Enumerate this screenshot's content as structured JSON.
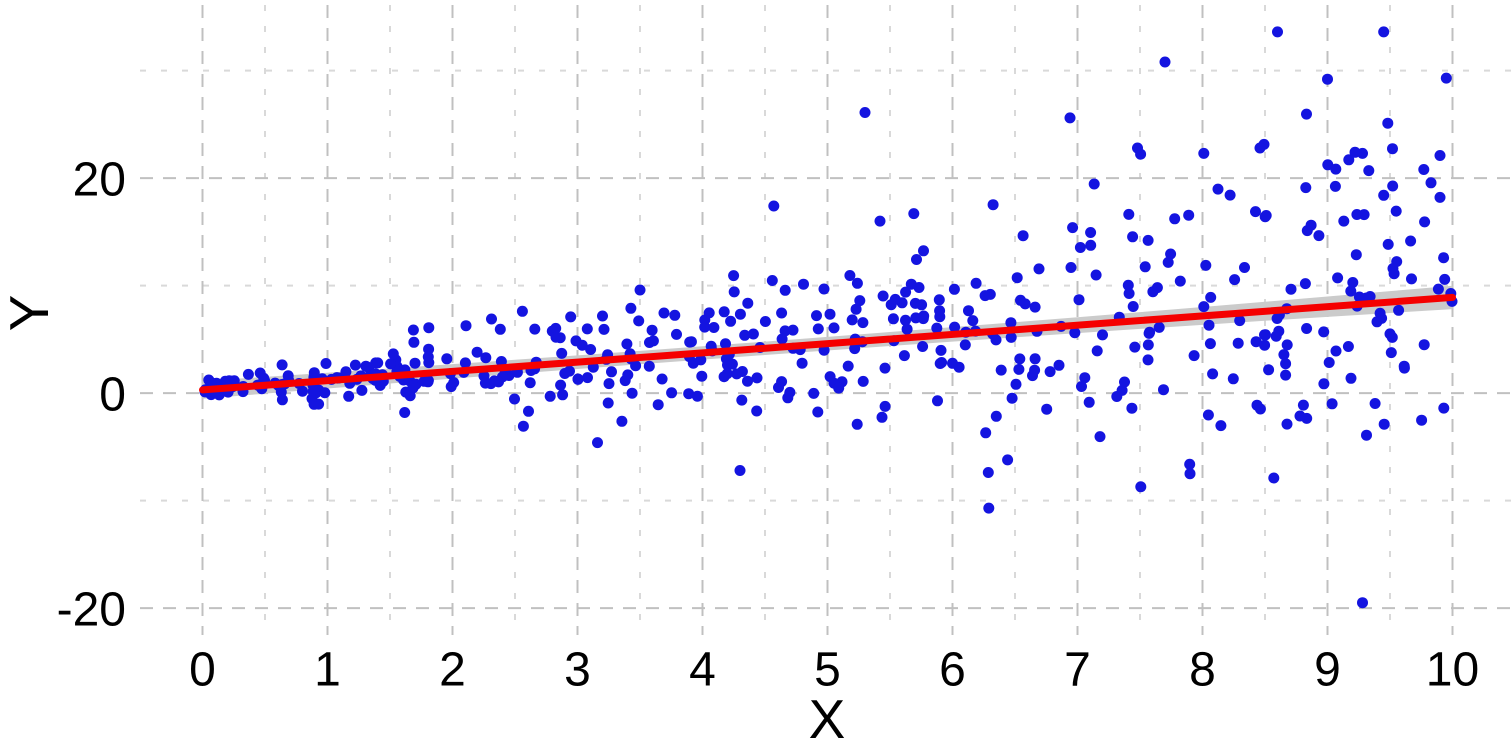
{
  "chart_data": {
    "type": "scatter",
    "title": "",
    "xlabel": "X",
    "ylabel": "Y",
    "xlim": [
      -0.5,
      10.5
    ],
    "ylim": [
      -22.5,
      36.1
    ],
    "grid": {
      "style": "dashed",
      "major_color": "#c0c0c0",
      "minor_color": "#d9d9d9"
    },
    "x_major_ticks": [
      0,
      1,
      2,
      3,
      4,
      5,
      6,
      7,
      8,
      9,
      10
    ],
    "x_tick_labels": [
      "0",
      "1",
      "2",
      "3",
      "4",
      "5",
      "6",
      "7",
      "8",
      "9",
      "10"
    ],
    "x_minor_gridlines": [
      0.5,
      1.5,
      2.5,
      3.5,
      4.5,
      5.5,
      6.5,
      7.5,
      8.5,
      9.5,
      10.5
    ],
    "y_major_ticks": [
      -20,
      0,
      20
    ],
    "y_tick_labels": [
      "-20",
      "0",
      "20"
    ],
    "y_minor_gridlines": [
      -10,
      10,
      30
    ],
    "regression_line": {
      "color": "#f50000",
      "width": 7,
      "intercept": 0.3,
      "slope": 0.86,
      "x_start": 0,
      "x_end": 10
    },
    "confidence_band": {
      "color": "#cbcbcb",
      "halfwidth_base": 0.62,
      "halfwidth_quad": 0.013,
      "halfwidth_center_x": 4
    },
    "scatter": {
      "color": "#1414e0",
      "point_radius": 5.5,
      "n_points": 500,
      "seed": 11,
      "x_min": 0,
      "x_max": 10,
      "noise_sd_base": 0.32,
      "noise_sd_per_x": 0.75,
      "noise_z_clamp": 2.6
    },
    "notable_points": [
      [
        5.3,
        26.1
      ],
      [
        6.94,
        25.6
      ],
      [
        7.7,
        30.8
      ],
      [
        8.6,
        33.6
      ],
      [
        9.0,
        29.2
      ],
      [
        9.45,
        33.6
      ],
      [
        9.95,
        29.3
      ],
      [
        9.9,
        22.1
      ],
      [
        9.17,
        21.7
      ],
      [
        9.28,
        22.3
      ],
      [
        9.33,
        20.7
      ],
      [
        9.45,
        18.4
      ],
      [
        9.9,
        18.2
      ],
      [
        4.57,
        17.4
      ],
      [
        5.42,
        16.0
      ],
      [
        5.69,
        16.7
      ],
      [
        8.01,
        22.3
      ],
      [
        8.46,
        22.8
      ],
      [
        9.22,
        22.4
      ],
      [
        7.48,
        22.8
      ],
      [
        9.28,
        -19.5
      ],
      [
        6.29,
        -10.7
      ],
      [
        7.9,
        -7.5
      ],
      [
        8.57,
        -7.9
      ],
      [
        4.3,
        -7.2
      ],
      [
        3.16,
        -4.6
      ]
    ]
  }
}
